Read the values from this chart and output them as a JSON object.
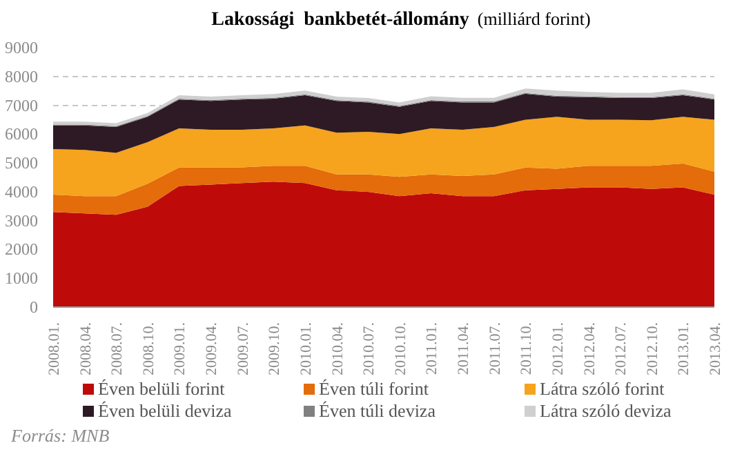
{
  "chart_data": {
    "type": "area",
    "stacked": true,
    "title": "Lakossági  bankbetét-állomány",
    "subtitle": "(milliárd forint)",
    "annotations": [
      "Forrás: MNB"
    ],
    "categories": [
      "2008.01.",
      "2008.04.",
      "2008.07.",
      "2008.10.",
      "2009.01.",
      "2009.04.",
      "2009.07.",
      "2009.10.",
      "2010.01.",
      "2010.04.",
      "2010.07.",
      "2010.10.",
      "2011.01.",
      "2011.04.",
      "2011.07.",
      "2011.10.",
      "2012.01.",
      "2012.04.",
      "2012.07.",
      "2012.10.",
      "2013.01.",
      "2013.04."
    ],
    "ylim": [
      0,
      9000
    ],
    "yticks": [
      0,
      1000,
      2000,
      3000,
      4000,
      5000,
      6000,
      7000,
      8000,
      9000
    ],
    "grid": "y",
    "legend": "bottom",
    "series": [
      {
        "name": "Éven belüli forint",
        "color": "#bf0a0a",
        "values": [
          3300,
          3250,
          3200,
          3480,
          4200,
          4250,
          4300,
          4350,
          4300,
          4050,
          4000,
          3850,
          3950,
          3850,
          3850,
          4050,
          4100,
          4150,
          4150,
          4100,
          4150,
          3900
        ]
      },
      {
        "name": "Éven túli forint",
        "color": "#e46c0a",
        "values": [
          600,
          600,
          650,
          800,
          640,
          590,
          550,
          550,
          600,
          550,
          600,
          670,
          650,
          700,
          750,
          790,
          700,
          750,
          750,
          800,
          830,
          800
        ]
      },
      {
        "name": "Látra szóló forint",
        "color": "#f6a31d",
        "values": [
          1580,
          1600,
          1500,
          1440,
          1360,
          1310,
          1300,
          1300,
          1400,
          1450,
          1480,
          1480,
          1600,
          1600,
          1650,
          1660,
          1800,
          1600,
          1600,
          1580,
          1620,
          1800
        ]
      },
      {
        "name": "Éven belüli deviza",
        "color": "#2e1a24",
        "values": [
          820,
          850,
          900,
          880,
          1000,
          1000,
          1050,
          1030,
          1050,
          1100,
          1020,
          950,
          950,
          950,
          850,
          900,
          700,
          780,
          750,
          770,
          750,
          700
        ]
      },
      {
        "name": "Éven túli deviza",
        "color": "#808080",
        "values": [
          30,
          30,
          30,
          30,
          30,
          30,
          30,
          30,
          30,
          30,
          30,
          30,
          30,
          30,
          30,
          30,
          30,
          30,
          30,
          30,
          30,
          30
        ]
      },
      {
        "name": "Látra szóló deviza",
        "color": "#cfcfcf",
        "values": [
          100,
          100,
          100,
          100,
          120,
          120,
          120,
          130,
          130,
          120,
          120,
          120,
          130,
          130,
          130,
          150,
          180,
          150,
          150,
          150,
          170,
          150
        ]
      }
    ]
  }
}
